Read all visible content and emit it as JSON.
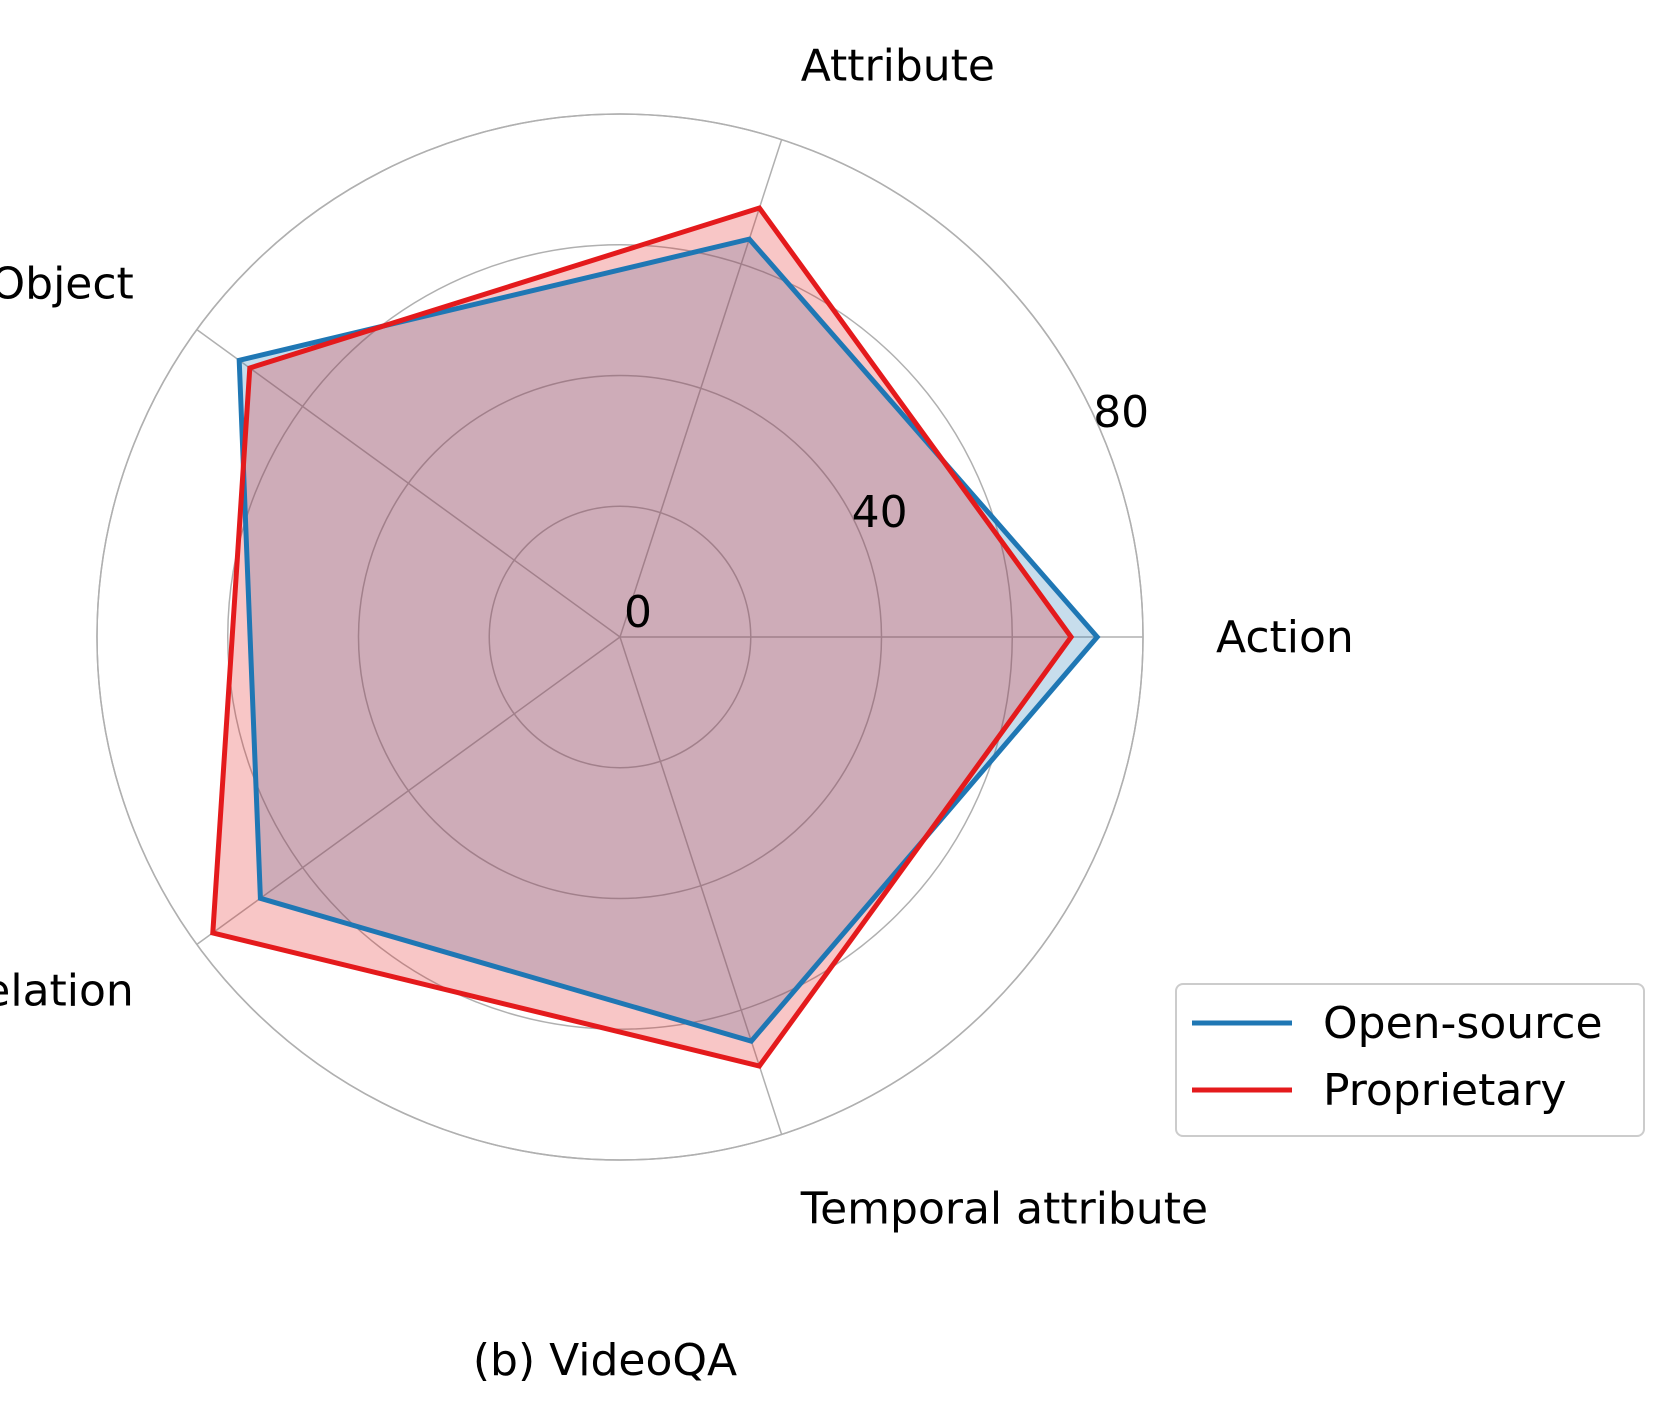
{
  "chart_data": {
    "type": "radar",
    "caption": "(b) VideoQA",
    "categories": [
      "Action",
      "Attribute",
      "Object",
      "Relation",
      "Temporal attribute"
    ],
    "r_ticks": [
      0,
      40,
      80
    ],
    "r_gridlines": [
      0,
      20,
      40,
      60,
      80
    ],
    "r_max": 80,
    "grid": true,
    "legend": {
      "position": "bottom-right"
    },
    "series": [
      {
        "name": "Open-source",
        "color": "#1f77b4",
        "values": [
          73,
          64,
          72,
          68,
          65
        ]
      },
      {
        "name": "Proprietary",
        "color": "#e41a1c",
        "values": [
          69,
          69,
          70,
          77,
          69
        ]
      }
    ]
  }
}
